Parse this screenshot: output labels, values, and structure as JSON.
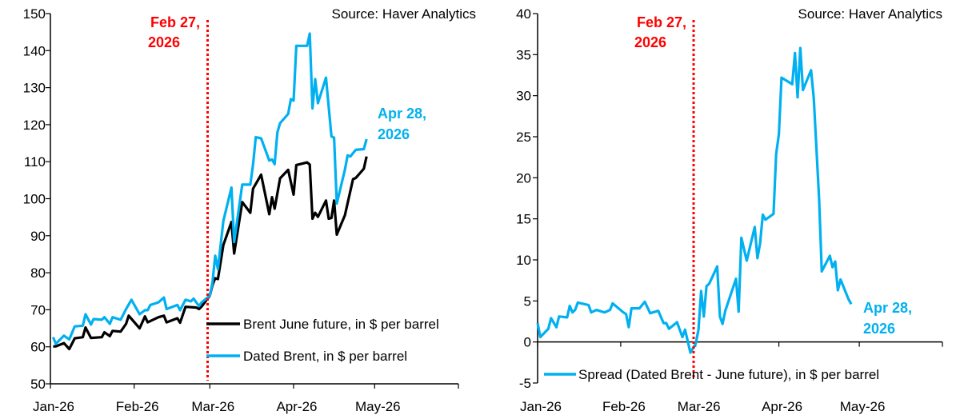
{
  "colors": {
    "future": "#000000",
    "dated": "#00B0F0",
    "spread": "#00B0F0",
    "event": "#FF0000"
  },
  "chart_data": [
    {
      "type": "line",
      "source": "Source: Haver Analytics",
      "ylim": [
        50,
        150
      ],
      "yticks": [
        50,
        60,
        70,
        80,
        90,
        100,
        110,
        120,
        130,
        140,
        150
      ],
      "xlim": [
        "2026-01-01",
        "2026-06-01"
      ],
      "xticks": [
        {
          "date": "2026-01-01",
          "label": "Jan-26"
        },
        {
          "date": "2026-02-01",
          "label": "Feb-26"
        },
        {
          "date": "2026-03-01",
          "label": "Mar-26"
        },
        {
          "date": "2026-04-01",
          "label": "Apr-26"
        },
        {
          "date": "2026-05-01",
          "label": "May-26"
        },
        {
          "date": "2026-06-01",
          "label": ""
        }
      ],
      "event_line": {
        "date": "2026-02-27",
        "label_line1": "Feb 27,",
        "label_line2": "2026"
      },
      "end_label": {
        "line1": "Apr 28,",
        "line2": "2026"
      },
      "legend_placement": "bottom-center",
      "series": [
        {
          "name": "Brent June future, in $ per barrel",
          "color": "#000000",
          "points": [
            [
              "2026-01-02",
              60.1
            ],
            [
              "2026-01-03",
              60.1
            ],
            [
              "2026-01-06",
              61.0
            ],
            [
              "2026-01-08",
              59.4
            ],
            [
              "2026-01-10",
              62.3
            ],
            [
              "2026-01-13",
              62.6
            ],
            [
              "2026-01-14",
              65.2
            ],
            [
              "2026-01-16",
              62.4
            ],
            [
              "2026-01-20",
              62.6
            ],
            [
              "2026-01-21",
              63.9
            ],
            [
              "2026-01-23",
              62.9
            ],
            [
              "2026-01-24",
              64.3
            ],
            [
              "2026-01-27",
              64.1
            ],
            [
              "2026-01-29",
              66.2
            ],
            [
              "2026-01-30",
              68.4
            ],
            [
              "2026-02-03",
              65.0
            ],
            [
              "2026-02-05",
              68.2
            ],
            [
              "2026-02-06",
              66.6
            ],
            [
              "2026-02-10",
              68.0
            ],
            [
              "2026-02-12",
              68.4
            ],
            [
              "2026-02-13",
              66.6
            ],
            [
              "2026-02-17",
              67.7
            ],
            [
              "2026-02-18",
              66.5
            ],
            [
              "2026-02-20",
              70.8
            ],
            [
              "2026-02-24",
              70.6
            ],
            [
              "2026-02-25",
              70.2
            ],
            [
              "2026-02-26",
              70.9
            ],
            [
              "2026-03-01",
              73.8
            ],
            [
              "2026-03-02",
              76.7
            ],
            [
              "2026-03-03",
              78.5
            ],
            [
              "2026-03-04",
              78.3
            ],
            [
              "2026-03-06",
              87.5
            ],
            [
              "2026-03-09",
              93.7
            ],
            [
              "2026-03-10",
              85.2
            ],
            [
              "2026-03-13",
              99.1
            ],
            [
              "2026-03-16",
              96.2
            ],
            [
              "2026-03-17",
              102.7
            ],
            [
              "2026-03-20",
              106.5
            ],
            [
              "2026-03-23",
              95.8
            ],
            [
              "2026-03-24",
              100.4
            ],
            [
              "2026-03-25",
              97.3
            ],
            [
              "2026-03-27",
              105.5
            ],
            [
              "2026-03-30",
              107.8
            ],
            [
              "2026-04-01",
              101.1
            ],
            [
              "2026-04-02",
              109.1
            ],
            [
              "2026-04-06",
              109.8
            ],
            [
              "2026-04-07",
              109.2
            ],
            [
              "2026-04-08",
              94.6
            ],
            [
              "2026-04-09",
              96.2
            ],
            [
              "2026-04-10",
              95.1
            ],
            [
              "2026-04-13",
              99.5
            ],
            [
              "2026-04-14",
              94.6
            ],
            [
              "2026-04-15",
              94.8
            ],
            [
              "2026-04-16",
              99.5
            ],
            [
              "2026-04-17",
              90.3
            ],
            [
              "2026-04-20",
              95.5
            ],
            [
              "2026-04-23",
              105.3
            ],
            [
              "2026-04-24",
              105.6
            ],
            [
              "2026-04-27",
              108.1
            ],
            [
              "2026-04-28",
              111.4
            ]
          ]
        },
        {
          "name": "Dated Brent, in $ per barrel",
          "color": "#00B0F0",
          "points": [
            [
              "2026-01-02",
              62.6
            ],
            [
              "2026-01-03",
              60.8
            ],
            [
              "2026-01-06",
              63.0
            ],
            [
              "2026-01-08",
              62.0
            ],
            [
              "2026-01-10",
              65.5
            ],
            [
              "2026-01-13",
              65.7
            ],
            [
              "2026-01-14",
              68.8
            ],
            [
              "2026-01-16",
              66.0
            ],
            [
              "2026-01-17",
              67.5
            ],
            [
              "2026-01-20",
              67.3
            ],
            [
              "2026-01-21",
              68.0
            ],
            [
              "2026-01-23",
              66.2
            ],
            [
              "2026-01-24",
              68.0
            ],
            [
              "2026-01-27",
              67.3
            ],
            [
              "2026-01-29",
              70.2
            ],
            [
              "2026-01-31",
              72.7
            ],
            [
              "2026-02-03",
              68.8
            ],
            [
              "2026-02-05",
              69.9
            ],
            [
              "2026-02-06",
              69.9
            ],
            [
              "2026-02-07",
              71.3
            ],
            [
              "2026-02-10",
              72.0
            ],
            [
              "2026-02-12",
              73.3
            ],
            [
              "2026-02-13",
              70.2
            ],
            [
              "2026-02-17",
              71.3
            ],
            [
              "2026-02-18",
              69.9
            ],
            [
              "2026-02-20",
              72.7
            ],
            [
              "2026-02-22",
              72.3
            ],
            [
              "2026-02-23",
              73.0
            ],
            [
              "2026-02-25",
              71.0
            ],
            [
              "2026-02-26",
              72.0
            ],
            [
              "2026-03-01",
              73.8
            ],
            [
              "2026-03-02",
              77.4
            ],
            [
              "2026-03-03",
              84.6
            ],
            [
              "2026-03-04",
              81.0
            ],
            [
              "2026-03-06",
              94.0
            ],
            [
              "2026-03-09",
              103.0
            ],
            [
              "2026-03-10",
              88.3
            ],
            [
              "2026-03-13",
              103.8
            ],
            [
              "2026-03-16",
              103.8
            ],
            [
              "2026-03-17",
              109.2
            ],
            [
              "2026-03-18",
              116.6
            ],
            [
              "2026-03-20",
              116.3
            ],
            [
              "2026-03-23",
              110.3
            ],
            [
              "2026-03-24",
              110.6
            ],
            [
              "2026-03-25",
              109.3
            ],
            [
              "2026-03-26",
              117.9
            ],
            [
              "2026-03-27",
              120.4
            ],
            [
              "2026-03-30",
              122.9
            ],
            [
              "2026-03-31",
              126.9
            ],
            [
              "2026-04-01",
              126.5
            ],
            [
              "2026-04-02",
              141.3
            ],
            [
              "2026-04-06",
              141.3
            ],
            [
              "2026-04-07",
              144.6
            ],
            [
              "2026-04-08",
              124.4
            ],
            [
              "2026-04-09",
              132.3
            ],
            [
              "2026-04-10",
              125.8
            ],
            [
              "2026-04-13",
              132.7
            ],
            [
              "2026-04-15",
              116.8
            ],
            [
              "2026-04-16",
              116.5
            ],
            [
              "2026-04-17",
              98.7
            ],
            [
              "2026-04-20",
              107.8
            ],
            [
              "2026-04-21",
              111.7
            ],
            [
              "2026-04-22",
              111.4
            ],
            [
              "2026-04-24",
              113.2
            ],
            [
              "2026-04-27",
              113.4
            ],
            [
              "2026-04-28",
              116.1
            ]
          ]
        }
      ]
    },
    {
      "type": "line",
      "source": "Source: Haver Analytics",
      "ylim": [
        -5,
        40
      ],
      "yticks": [
        -5,
        0,
        5,
        10,
        15,
        20,
        25,
        30,
        35,
        40
      ],
      "xlim": [
        "2026-01-01",
        "2026-06-01"
      ],
      "xticks": [
        {
          "date": "2026-01-01",
          "label": "Jan-26"
        },
        {
          "date": "2026-02-01",
          "label": "Feb-26"
        },
        {
          "date": "2026-03-01",
          "label": "Mar-26"
        },
        {
          "date": "2026-04-01",
          "label": "Apr-26"
        },
        {
          "date": "2026-05-01",
          "label": "May-26"
        },
        {
          "date": "2026-06-01",
          "label": ""
        }
      ],
      "event_line": {
        "date": "2026-02-27",
        "label_line1": "Feb 27,",
        "label_line2": "2026"
      },
      "end_label": {
        "line1": "Apr 28,",
        "line2": "2026"
      },
      "legend_placement": "bottom-left",
      "series": [
        {
          "name": "Spread (Dated Brent - June future), in $ per barrel",
          "color": "#00B0F0",
          "points": [
            [
              "2026-01-01",
              2.3
            ],
            [
              "2026-01-02",
              0.6
            ],
            [
              "2026-01-05",
              1.6
            ],
            [
              "2026-01-06",
              2.9
            ],
            [
              "2026-01-08",
              1.8
            ],
            [
              "2026-01-09",
              3.1
            ],
            [
              "2026-01-12",
              3.0
            ],
            [
              "2026-01-13",
              4.4
            ],
            [
              "2026-01-14",
              3.6
            ],
            [
              "2026-01-15",
              3.9
            ],
            [
              "2026-01-16",
              4.8
            ],
            [
              "2026-01-20",
              4.5
            ],
            [
              "2026-01-21",
              3.6
            ],
            [
              "2026-01-23",
              3.9
            ],
            [
              "2026-01-26",
              3.6
            ],
            [
              "2026-01-28",
              3.9
            ],
            [
              "2026-01-29",
              4.7
            ],
            [
              "2026-02-02",
              3.6
            ],
            [
              "2026-02-03",
              3.4
            ],
            [
              "2026-02-04",
              1.8
            ],
            [
              "2026-02-05",
              4.1
            ],
            [
              "2026-02-08",
              4.1
            ],
            [
              "2026-02-10",
              4.9
            ],
            [
              "2026-02-12",
              3.5
            ],
            [
              "2026-02-15",
              3.8
            ],
            [
              "2026-02-17",
              2.3
            ],
            [
              "2026-02-18",
              2.3
            ],
            [
              "2026-02-19",
              1.6
            ],
            [
              "2026-02-22",
              2.4
            ],
            [
              "2026-02-24",
              0.6
            ],
            [
              "2026-02-25",
              1.5
            ],
            [
              "2026-02-27",
              -1.3
            ],
            [
              "2026-03-01",
              -0.2
            ],
            [
              "2026-03-02",
              1.5
            ],
            [
              "2026-03-03",
              6.2
            ],
            [
              "2026-03-04",
              3.1
            ],
            [
              "2026-03-05",
              6.8
            ],
            [
              "2026-03-06",
              7.1
            ],
            [
              "2026-03-09",
              9.2
            ],
            [
              "2026-03-10",
              3.1
            ],
            [
              "2026-03-11",
              2.2
            ],
            [
              "2026-03-12",
              3.8
            ],
            [
              "2026-03-16",
              7.7
            ],
            [
              "2026-03-17",
              3.7
            ],
            [
              "2026-03-18",
              12.7
            ],
            [
              "2026-03-20",
              9.9
            ],
            [
              "2026-03-23",
              14.0
            ],
            [
              "2026-03-24",
              10.2
            ],
            [
              "2026-03-25",
              12.0
            ],
            [
              "2026-03-26",
              15.5
            ],
            [
              "2026-03-27",
              14.9
            ],
            [
              "2026-03-30",
              15.6
            ],
            [
              "2026-03-31",
              22.9
            ],
            [
              "2026-04-01",
              25.3
            ],
            [
              "2026-04-02",
              32.2
            ],
            [
              "2026-04-06",
              31.4
            ],
            [
              "2026-04-07",
              35.2
            ],
            [
              "2026-04-08",
              29.8
            ],
            [
              "2026-04-09",
              35.8
            ],
            [
              "2026-04-10",
              30.7
            ],
            [
              "2026-04-13",
              33.1
            ],
            [
              "2026-04-14",
              29.7
            ],
            [
              "2026-04-16",
              17.4
            ],
            [
              "2026-04-17",
              8.6
            ],
            [
              "2026-04-20",
              10.5
            ],
            [
              "2026-04-21",
              9.1
            ],
            [
              "2026-04-22",
              9.8
            ],
            [
              "2026-04-23",
              6.3
            ],
            [
              "2026-04-24",
              7.6
            ],
            [
              "2026-04-27",
              5.2
            ],
            [
              "2026-04-28",
              4.6
            ]
          ]
        }
      ]
    }
  ]
}
